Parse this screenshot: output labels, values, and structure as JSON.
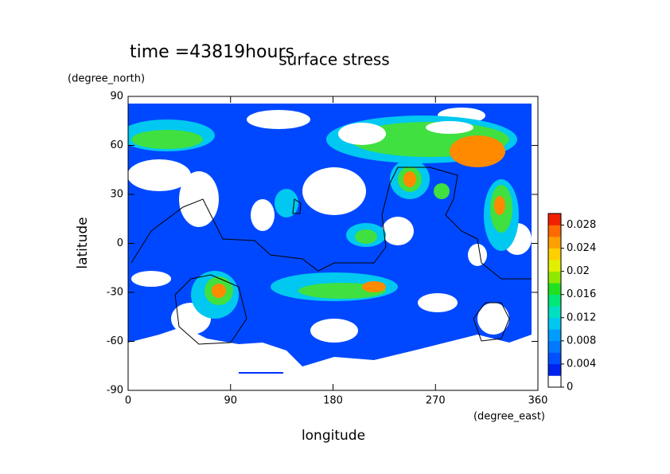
{
  "chart_data": {
    "type": "contour",
    "title": "surface stress",
    "subtitle": "time =43819hours",
    "x_label": "longitude",
    "x_unit": "(degree_east)",
    "y_label": "latitude",
    "y_unit": "(degree_north)",
    "xlim": [
      0,
      360
    ],
    "xticks": [
      0,
      90,
      180,
      270,
      360
    ],
    "ylim": [
      -90,
      90
    ],
    "yticks": [
      -90,
      -60,
      -30,
      0,
      30,
      60,
      90
    ],
    "clim": [
      0,
      0.03
    ],
    "cticks": [
      0,
      0.004,
      0.008,
      0.012,
      0.016,
      0.02,
      0.024,
      0.028
    ],
    "colors": [
      "#ffffff",
      "#0022ee",
      "#0050ff",
      "#0078ff",
      "#009cff",
      "#00c8f0",
      "#00e0c0",
      "#00e878",
      "#20e020",
      "#90e800",
      "#e0f000",
      "#ffd000",
      "#ffa000",
      "#ff6a00",
      "#f02000"
    ]
  }
}
